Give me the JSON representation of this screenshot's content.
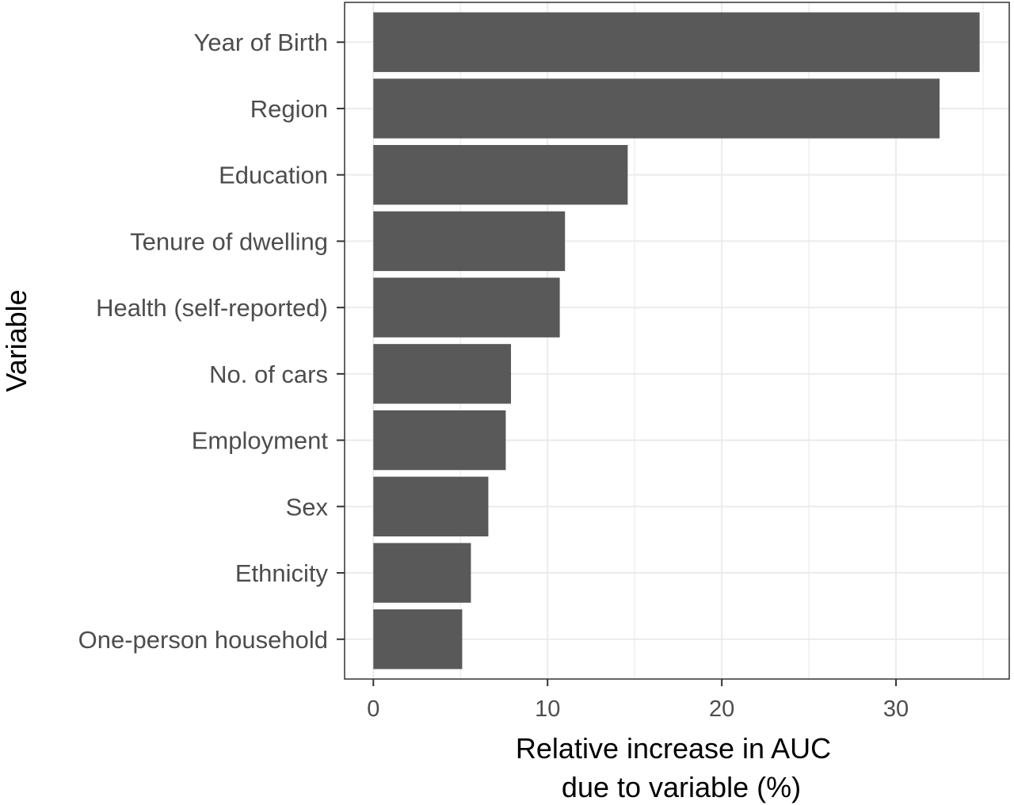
{
  "chart_data": {
    "type": "bar",
    "orientation": "horizontal",
    "categories": [
      "Year of Birth",
      "Region",
      "Education",
      "Tenure of dwelling",
      "Health (self-reported)",
      "No. of cars",
      "Employment",
      "Sex",
      "Ethnicity",
      "One-person household"
    ],
    "values": [
      34.8,
      32.5,
      14.6,
      11.0,
      10.7,
      7.9,
      7.6,
      6.6,
      5.6,
      5.1
    ],
    "xlabel_lines": [
      "Relative increase in AUC",
      "due to variable (%)"
    ],
    "ylabel": "Variable",
    "xlim": [
      -1.65,
      36.5
    ],
    "xticks": [
      0,
      10,
      20,
      30
    ],
    "xtick_labels": [
      "0",
      "10",
      "20",
      "30"
    ],
    "grid": true,
    "theme": "ggplot-bw",
    "colors": {
      "bar": "#595959",
      "grid": "#ebebeb",
      "panel_border": "#333333",
      "tick_label": "#4d4d4d",
      "axis_title": "#000000"
    }
  }
}
